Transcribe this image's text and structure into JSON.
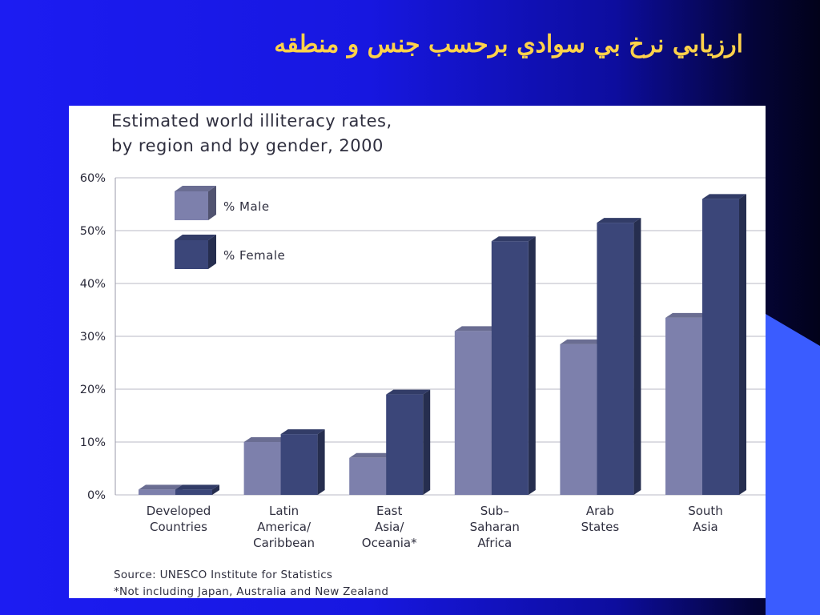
{
  "slide": {
    "title": "ارزيابي نرخ بي سوادي برحسب جنس و منطقه"
  },
  "colors": {
    "background": "#1717e0",
    "title": "#ffd24a",
    "male_front": "#7d80ac",
    "female_front": "#3b4679"
  },
  "chart_data": {
    "type": "bar",
    "title_lines": [
      "Estimated world illiteracy rates,",
      "by region and by gender, 2000"
    ],
    "categories": [
      [
        "Developed",
        "Countries"
      ],
      [
        "Latin",
        "America/",
        "Caribbean"
      ],
      [
        "East",
        "Asia/",
        "Oceania*"
      ],
      [
        "Sub–",
        "Saharan",
        "Africa"
      ],
      [
        "Arab",
        "States"
      ],
      [
        "South",
        "Asia"
      ]
    ],
    "series": [
      {
        "name": "% Male",
        "values": [
          1,
          10,
          7,
          31,
          28.5,
          33.5
        ]
      },
      {
        "name": "% Female",
        "values": [
          1,
          11.5,
          19,
          48,
          51.5,
          56
        ]
      }
    ],
    "yticks": [
      "0%",
      "10%",
      "20%",
      "30%",
      "40%",
      "50%",
      "60%"
    ],
    "ylim": [
      0,
      60
    ],
    "grid": true,
    "legend_position": "top-left",
    "source_lines": [
      "Source: UNESCO Institute for Statistics",
      "*Not including Japan, Australia and New Zealand"
    ]
  }
}
